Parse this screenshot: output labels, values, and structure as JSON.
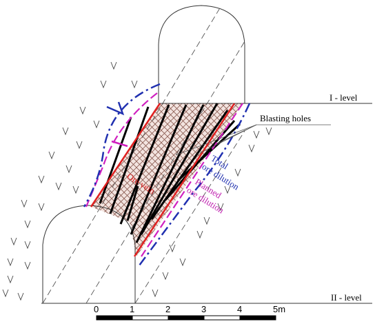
{
  "levels": {
    "upper": "I - level",
    "lower": "II - level"
  },
  "labels": {
    "blasting_holes": "Blasting holes",
    "total_dilution": [
      "Total",
      "ore dilution"
    ],
    "planned_dilution": [
      "Planned",
      "ore dilution"
    ],
    "ore_vein": "Ore vein"
  },
  "scale": [
    "0",
    "1",
    "2",
    "3",
    "4",
    "5m"
  ]
}
